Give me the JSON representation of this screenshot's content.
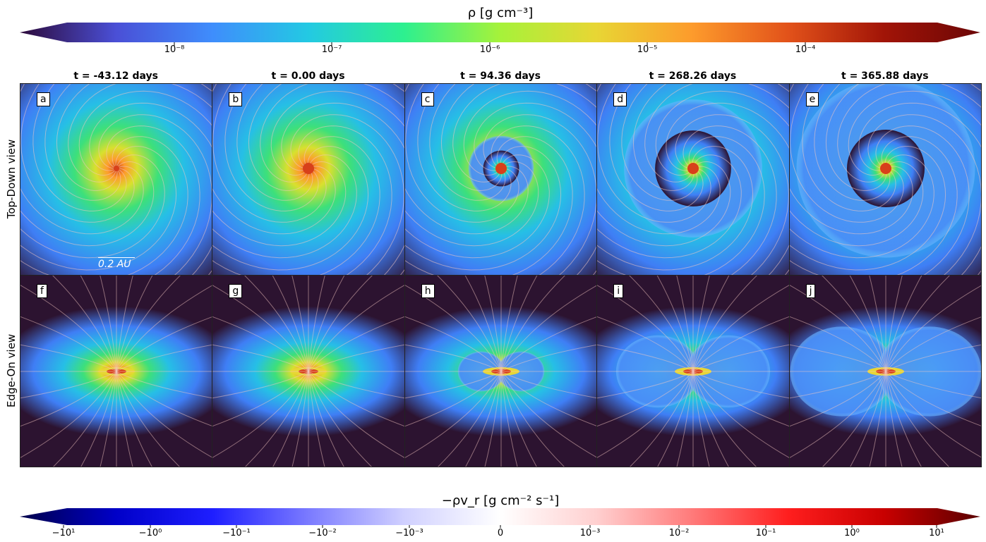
{
  "density_colorbar": {
    "title": "ρ [g cm⁻³]",
    "ticks": [
      "10⁻⁸",
      "10⁻⁷",
      "10⁻⁶",
      "10⁻⁵",
      "10⁻⁴"
    ],
    "colors": [
      "#2d0a3a",
      "#4a4fd6",
      "#3f8dfc",
      "#23c9e3",
      "#2df08f",
      "#a6f23a",
      "#e8d634",
      "#fd9b2c",
      "#e2521a",
      "#a11407",
      "#6b0606"
    ]
  },
  "flux_colorbar": {
    "title": "−ρv_r [g cm⁻² s⁻¹]",
    "ticks": [
      "−10¹",
      "−10⁰",
      "−10⁻¹",
      "−10⁻²",
      "−10⁻³",
      "0",
      "10⁻³",
      "10⁻²",
      "10⁻¹",
      "10⁰",
      "10¹"
    ],
    "colors": [
      "#00004a",
      "#0000c8",
      "#1e1eff",
      "#7a7aff",
      "#d0d0ff",
      "#ffffff",
      "#ffd0d0",
      "#ff7a7a",
      "#ff1e1e",
      "#c80000",
      "#5a0000"
    ]
  },
  "row_labels": [
    "Top-Down view",
    "Edge-On view"
  ],
  "scale_bar_label": "0.2 AU",
  "chart_data": {
    "type": "heatmap",
    "columns": [
      {
        "time": "t = -43.12 days",
        "top": "a",
        "bottom": "f",
        "bubble_size": 0.0
      },
      {
        "time": "t = 0.00 days",
        "top": "b",
        "bottom": "g",
        "bubble_size": 0.0
      },
      {
        "time": "t = 94.36 days",
        "top": "c",
        "bottom": "h",
        "bubble_size": 0.34
      },
      {
        "time": "t = 268.26 days",
        "top": "d",
        "bottom": "i",
        "bubble_size": 0.72
      },
      {
        "time": "t = 365.88 days",
        "top": "e",
        "bottom": "j",
        "bubble_size": 0.93
      }
    ],
    "density_range_log10": [
      -8.5,
      -3.5
    ],
    "flux_range_symlog": [
      -10,
      10
    ]
  }
}
